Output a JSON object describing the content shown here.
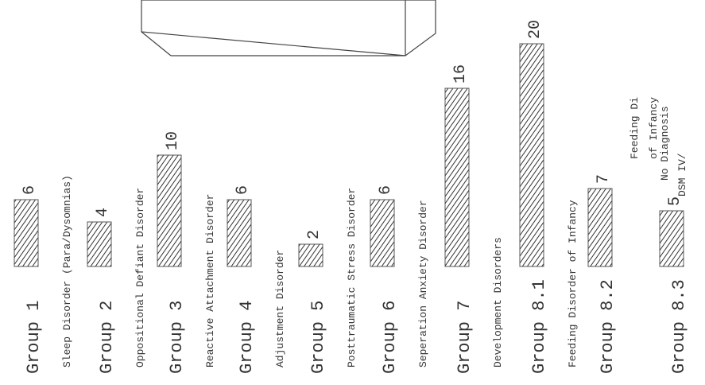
{
  "chart_data": {
    "type": "bar",
    "categories": [
      "Group 1",
      "Group 2",
      "Group 3",
      "Group 4",
      "Group 5",
      "Group 6",
      "Group 7",
      "Group 8.1",
      "Group 8.2",
      "Group 8.3"
    ],
    "descriptions": [
      [
        "Sleep Disorder (Para/Dysomnias)"
      ],
      [
        "Oppositional Defiant Disorder"
      ],
      [
        "Reactive Attachment Disorder"
      ],
      [
        "Adjustment Disorder"
      ],
      [
        "Posttraumatic Stress Disorder"
      ],
      [
        "Seperation Anxiety Disorder"
      ],
      [
        "Development Disorders"
      ],
      [
        "Feeding Disorder of Infancy"
      ],
      [
        "Feeding Di",
        "of Infancy"
      ],
      [
        "No Diagnosis",
        "DSM IV/"
      ]
    ],
    "values": [
      6,
      4,
      10,
      6,
      2,
      6,
      16,
      20,
      7,
      5
    ],
    "color": "#555555",
    "ylim": [
      0,
      20
    ]
  }
}
